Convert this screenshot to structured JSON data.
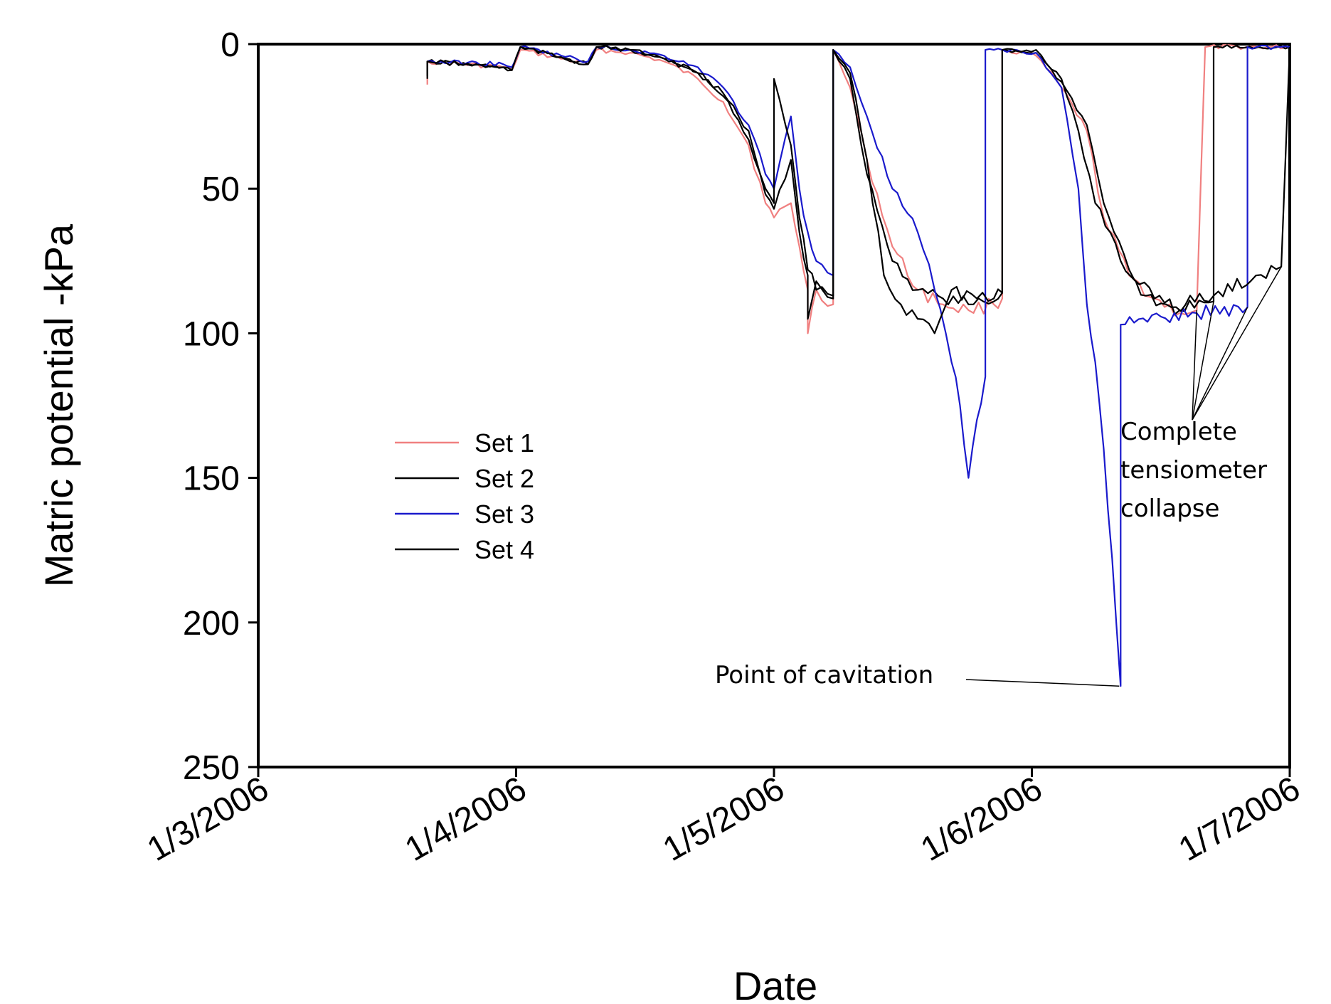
{
  "chart_data": {
    "type": "line",
    "title": "",
    "xlabel": "Date",
    "ylabel": "Matric potential -kPa",
    "x_ticks": [
      "1/3/2006",
      "1/4/2006",
      "1/5/2006",
      "1/6/2006",
      "1/7/2006"
    ],
    "xlim": [
      "2006-03-01",
      "2006-07-01"
    ],
    "y_ticks": [
      0,
      50,
      100,
      150,
      200,
      250
    ],
    "ylim": [
      0,
      250
    ],
    "y_inverted": true,
    "grid": false,
    "legend_position": "center-left",
    "series": [
      {
        "name": "Set 1",
        "color": "#f08080",
        "points": [
          [
            "2006-03-21",
            14
          ],
          [
            "2006-03-21",
            6
          ],
          [
            "2006-03-30",
            8
          ],
          [
            "2006-03-31",
            9
          ],
          [
            "2006-04-01",
            2
          ],
          [
            "2006-04-09",
            7
          ],
          [
            "2006-04-10",
            2
          ],
          [
            "2006-04-14",
            3
          ],
          [
            "2006-04-18",
            6
          ],
          [
            "2006-04-22",
            12
          ],
          [
            "2006-04-25",
            20
          ],
          [
            "2006-04-28",
            35
          ],
          [
            "2006-04-30",
            55
          ],
          [
            "2006-05-01",
            60
          ],
          [
            "2006-05-03",
            55
          ],
          [
            "2006-05-04",
            70
          ],
          [
            "2006-05-05",
            85
          ],
          [
            "2006-05-05",
            100
          ],
          [
            "2006-05-06",
            85
          ],
          [
            "2006-05-08",
            90
          ],
          [
            "2006-05-08",
            2
          ],
          [
            "2006-05-10",
            15
          ],
          [
            "2006-05-12",
            40
          ],
          [
            "2006-05-15",
            70
          ],
          [
            "2006-05-18",
            85
          ],
          [
            "2006-05-21",
            90
          ],
          [
            "2006-05-24",
            92
          ],
          [
            "2006-05-27",
            90
          ],
          [
            "2006-05-28",
            88
          ],
          [
            "2006-05-28",
            2
          ],
          [
            "2006-06-01",
            4
          ],
          [
            "2006-06-04",
            15
          ],
          [
            "2006-06-07",
            30
          ],
          [
            "2006-06-09",
            60
          ],
          [
            "2006-06-12",
            80
          ],
          [
            "2006-06-15",
            88
          ],
          [
            "2006-06-18",
            93
          ],
          [
            "2006-06-20",
            92
          ],
          [
            "2006-06-21",
            1
          ],
          [
            "2006-07-01",
            1
          ]
        ]
      },
      {
        "name": "Set 2",
        "color": "#000000",
        "points": [
          [
            "2006-03-21",
            12
          ],
          [
            "2006-03-21",
            6
          ],
          [
            "2006-03-30",
            8
          ],
          [
            "2006-03-31",
            9
          ],
          [
            "2006-04-01",
            1
          ],
          [
            "2006-04-09",
            7
          ],
          [
            "2006-04-10",
            1
          ],
          [
            "2006-04-14",
            2
          ],
          [
            "2006-04-18",
            5
          ],
          [
            "2006-04-22",
            10
          ],
          [
            "2006-04-25",
            18
          ],
          [
            "2006-04-28",
            33
          ],
          [
            "2006-04-30",
            52
          ],
          [
            "2006-05-01",
            57
          ],
          [
            "2006-05-03",
            40
          ],
          [
            "2006-05-04",
            65
          ],
          [
            "2006-05-05",
            80
          ],
          [
            "2006-05-05",
            95
          ],
          [
            "2006-05-06",
            82
          ],
          [
            "2006-05-08",
            88
          ],
          [
            "2006-05-08",
            2
          ],
          [
            "2006-05-10",
            12
          ],
          [
            "2006-05-12",
            45
          ],
          [
            "2006-05-15",
            75
          ],
          [
            "2006-05-18",
            85
          ],
          [
            "2006-05-21",
            88
          ],
          [
            "2006-05-24",
            90
          ],
          [
            "2006-05-27",
            89
          ],
          [
            "2006-05-28",
            86
          ],
          [
            "2006-05-28",
            2
          ],
          [
            "2006-06-01",
            3
          ],
          [
            "2006-06-04",
            13
          ],
          [
            "2006-06-07",
            28
          ],
          [
            "2006-06-09",
            55
          ],
          [
            "2006-06-12",
            78
          ],
          [
            "2006-06-15",
            88
          ],
          [
            "2006-06-18",
            92
          ],
          [
            "2006-06-22",
            89
          ],
          [
            "2006-06-22",
            1
          ],
          [
            "2006-07-01",
            1
          ]
        ]
      },
      {
        "name": "Set 3",
        "color": "#1a1acc",
        "points": [
          [
            "2006-03-21",
            6
          ],
          [
            "2006-03-30",
            7
          ],
          [
            "2006-03-31",
            8
          ],
          [
            "2006-04-01",
            1
          ],
          [
            "2006-04-09",
            6
          ],
          [
            "2006-04-10",
            1
          ],
          [
            "2006-04-14",
            2
          ],
          [
            "2006-04-18",
            4
          ],
          [
            "2006-04-22",
            8
          ],
          [
            "2006-04-25",
            15
          ],
          [
            "2006-04-28",
            28
          ],
          [
            "2006-04-30",
            45
          ],
          [
            "2006-05-01",
            50
          ],
          [
            "2006-05-03",
            25
          ],
          [
            "2006-05-04",
            50
          ],
          [
            "2006-05-05",
            65
          ],
          [
            "2006-05-06",
            75
          ],
          [
            "2006-05-08",
            80
          ],
          [
            "2006-05-08",
            2
          ],
          [
            "2006-05-10",
            8
          ],
          [
            "2006-05-12",
            25
          ],
          [
            "2006-05-15",
            50
          ],
          [
            "2006-05-18",
            65
          ],
          [
            "2006-05-20",
            85
          ],
          [
            "2006-05-22",
            110
          ],
          [
            "2006-05-23",
            125
          ],
          [
            "2006-05-24",
            150
          ],
          [
            "2006-05-25",
            130
          ],
          [
            "2006-05-26",
            115
          ],
          [
            "2006-05-26",
            2
          ],
          [
            "2006-05-27",
            2
          ],
          [
            "2006-05-28",
            2
          ],
          [
            "2006-06-01",
            3
          ],
          [
            "2006-06-04",
            15
          ],
          [
            "2006-06-06",
            50
          ],
          [
            "2006-06-07",
            90
          ],
          [
            "2006-06-08",
            110
          ],
          [
            "2006-06-09",
            140
          ],
          [
            "2006-06-10",
            178
          ],
          [
            "2006-06-11",
            222
          ],
          [
            "2006-06-11",
            97
          ],
          [
            "2006-06-20",
            93
          ],
          [
            "2006-06-26",
            91
          ],
          [
            "2006-06-26",
            1
          ],
          [
            "2006-07-01",
            1
          ]
        ]
      },
      {
        "name": "Set 4",
        "color": "#000000",
        "points": [
          [
            "2006-03-21",
            11
          ],
          [
            "2006-03-21",
            6
          ],
          [
            "2006-03-30",
            8
          ],
          [
            "2006-03-31",
            9
          ],
          [
            "2006-04-01",
            1
          ],
          [
            "2006-04-09",
            7
          ],
          [
            "2006-04-10",
            1
          ],
          [
            "2006-04-14",
            2
          ],
          [
            "2006-04-18",
            5
          ],
          [
            "2006-04-22",
            10
          ],
          [
            "2006-04-25",
            17
          ],
          [
            "2006-04-28",
            30
          ],
          [
            "2006-04-30",
            50
          ],
          [
            "2006-05-01",
            55
          ],
          [
            "2006-05-01",
            12
          ],
          [
            "2006-05-03",
            35
          ],
          [
            "2006-05-04",
            60
          ],
          [
            "2006-05-05",
            78
          ],
          [
            "2006-05-06",
            85
          ],
          [
            "2006-05-08",
            87
          ],
          [
            "2006-05-08",
            2
          ],
          [
            "2006-05-10",
            10
          ],
          [
            "2006-05-12",
            40
          ],
          [
            "2006-05-14",
            80
          ],
          [
            "2006-05-16",
            90
          ],
          [
            "2006-05-18",
            95
          ],
          [
            "2006-05-20",
            100
          ],
          [
            "2006-05-22",
            85
          ],
          [
            "2006-05-25",
            88
          ],
          [
            "2006-05-27",
            88
          ],
          [
            "2006-05-28",
            86
          ],
          [
            "2006-05-28",
            2
          ],
          [
            "2006-06-01",
            2
          ],
          [
            "2006-06-04",
            12
          ],
          [
            "2006-06-06",
            30
          ],
          [
            "2006-06-08",
            55
          ],
          [
            "2006-06-11",
            75
          ],
          [
            "2006-06-14",
            87
          ],
          [
            "2006-06-17",
            91
          ],
          [
            "2006-06-22",
            87
          ],
          [
            "2006-06-27",
            80
          ],
          [
            "2006-06-30",
            77
          ],
          [
            "2006-07-01",
            1
          ],
          [
            "2006-07-01",
            1
          ]
        ]
      }
    ],
    "annotations": [
      {
        "text": "Point of cavitation",
        "target": [
          "2006-06-11",
          222
        ]
      },
      {
        "text": [
          "Complete",
          "tensiometer",
          "collapse"
        ],
        "targets": [
          [
            "2006-06-20",
            92
          ],
          [
            "2006-06-22",
            89
          ],
          [
            "2006-06-26",
            91
          ],
          [
            "2006-06-30",
            77
          ]
        ]
      }
    ]
  }
}
